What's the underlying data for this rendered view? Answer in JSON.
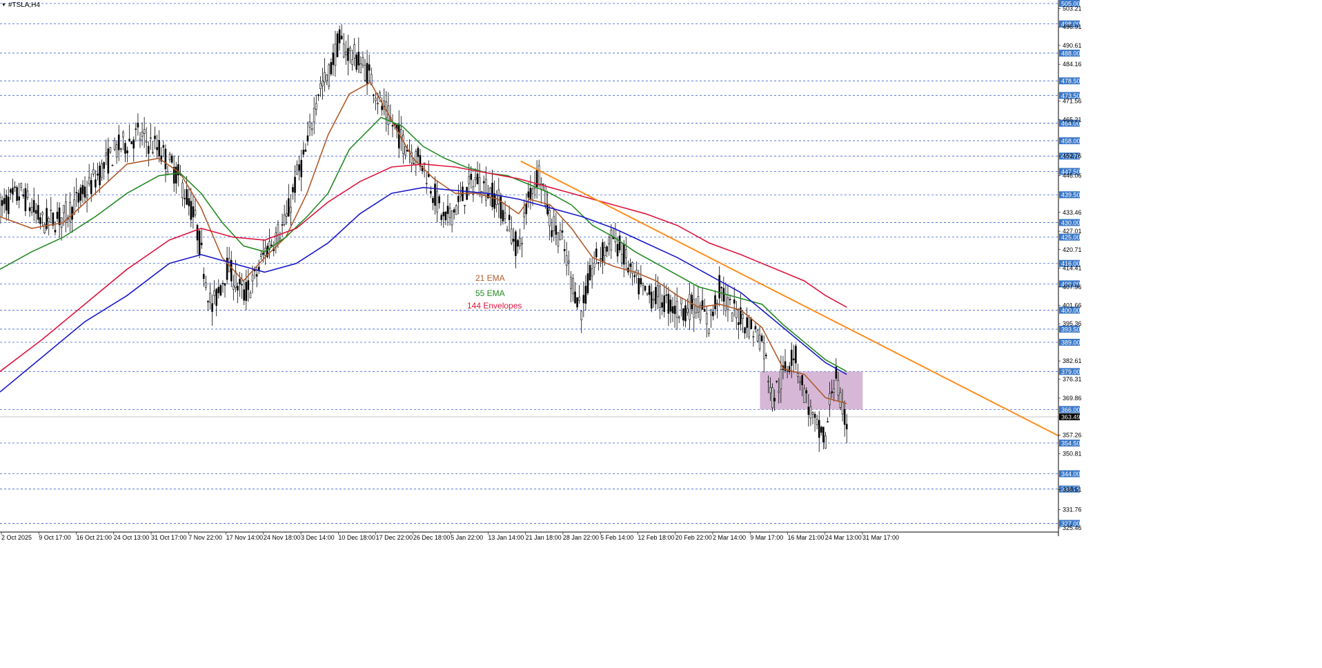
{
  "symbol": "#TSLA,H4",
  "chart_data": {
    "type": "candlestick",
    "title": "#TSLA,H4",
    "price_range": [
      325.45,
      505.0
    ],
    "current_price": "363.49",
    "y_tick_labels": [
      "503.21",
      "496.91",
      "490.61",
      "484.16",
      "471.56",
      "465.21",
      "452.76",
      "446.06",
      "433.46",
      "427.01",
      "420.71",
      "414.41",
      "407.96",
      "401.66",
      "395.36",
      "382.61",
      "376.31",
      "369.86",
      "357.26",
      "350.81",
      "338.51",
      "331.76",
      "325.46"
    ],
    "horizontal_levels": [
      "505.00",
      "498.00",
      "488.00",
      "478.50",
      "473.50",
      "464.00",
      "458.00",
      "452.75",
      "447.50",
      "439.50",
      "430.00",
      "425.00",
      "416.00",
      "409.00",
      "400.00",
      "393.50",
      "389.00",
      "379.00",
      "366.00",
      "354.50",
      "344.00",
      "338.75",
      "327.00"
    ],
    "x_tick_labels": [
      "2 Oct 2025",
      "9 Oct 17:00",
      "16 Oct 21:00",
      "24 Oct 13:00",
      "31 Oct 17:00",
      "7 Nov 22:00",
      "17 Nov 14:00",
      "24 Nov 18:00",
      "3 Dec 14:00",
      "10 Dec 18:00",
      "17 Dec 22:00",
      "26 Dec 18:00",
      "5 Jan 22:00",
      "13 Jan 14:00",
      "21 Jan 18:00",
      "28 Jan 22:00",
      "5 Feb 14:00",
      "12 Feb 18:00",
      "20 Feb 22:00",
      "2 Mar 14:00",
      "9 Mar 17:00",
      "16 Mar 21:00",
      "24 Mar 13:00",
      "31 Mar 17:00"
    ],
    "price_path": [
      [
        0,
        435
      ],
      [
        0.02,
        440
      ],
      [
        0.04,
        430
      ],
      [
        0.06,
        432
      ],
      [
        0.08,
        440
      ],
      [
        0.11,
        455
      ],
      [
        0.13,
        460
      ],
      [
        0.15,
        455
      ],
      [
        0.17,
        445
      ],
      [
        0.185,
        430
      ],
      [
        0.2,
        400
      ],
      [
        0.215,
        415
      ],
      [
        0.23,
        405
      ],
      [
        0.24,
        410
      ],
      [
        0.25,
        420
      ],
      [
        0.27,
        430
      ],
      [
        0.28,
        445
      ],
      [
        0.29,
        455
      ],
      [
        0.3,
        475
      ],
      [
        0.31,
        480
      ],
      [
        0.32,
        492
      ],
      [
        0.33,
        488
      ],
      [
        0.34,
        485
      ],
      [
        0.35,
        480
      ],
      [
        0.36,
        470
      ],
      [
        0.38,
        458
      ],
      [
        0.4,
        450
      ],
      [
        0.41,
        440
      ],
      [
        0.42,
        430
      ],
      [
        0.44,
        440
      ],
      [
        0.45,
        445
      ],
      [
        0.47,
        438
      ],
      [
        0.48,
        430
      ],
      [
        0.49,
        420
      ],
      [
        0.5,
        440
      ],
      [
        0.51,
        448
      ],
      [
        0.52,
        430
      ],
      [
        0.53,
        425
      ],
      [
        0.54,
        410
      ],
      [
        0.55,
        400
      ],
      [
        0.56,
        415
      ],
      [
        0.57,
        420
      ],
      [
        0.58,
        425
      ],
      [
        0.59,
        418
      ],
      [
        0.6,
        410
      ],
      [
        0.61,
        405
      ],
      [
        0.62,
        405
      ],
      [
        0.64,
        400
      ],
      [
        0.66,
        402
      ],
      [
        0.67,
        395
      ],
      [
        0.68,
        408
      ],
      [
        0.69,
        400
      ],
      [
        0.7,
        398
      ],
      [
        0.72,
        390
      ],
      [
        0.73,
        370
      ],
      [
        0.74,
        378
      ],
      [
        0.75,
        386
      ],
      [
        0.76,
        372
      ],
      [
        0.77,
        360
      ],
      [
        0.78,
        355
      ],
      [
        0.785,
        372
      ],
      [
        0.79,
        378
      ],
      [
        0.795,
        365
      ],
      [
        0.8,
        362
      ]
    ],
    "series": [
      {
        "name": "21 EMA",
        "color": "#b05a2a",
        "points": [
          [
            0,
            432
          ],
          [
            0.03,
            428
          ],
          [
            0.06,
            430
          ],
          [
            0.09,
            440
          ],
          [
            0.12,
            450
          ],
          [
            0.15,
            452
          ],
          [
            0.17,
            447
          ],
          [
            0.19,
            435
          ],
          [
            0.21,
            418
          ],
          [
            0.23,
            410
          ],
          [
            0.25,
            418
          ],
          [
            0.27,
            425
          ],
          [
            0.29,
            440
          ],
          [
            0.31,
            460
          ],
          [
            0.33,
            474
          ],
          [
            0.35,
            478
          ],
          [
            0.37,
            465
          ],
          [
            0.39,
            452
          ],
          [
            0.41,
            445
          ],
          [
            0.43,
            440
          ],
          [
            0.45,
            440
          ],
          [
            0.47,
            438
          ],
          [
            0.49,
            433
          ],
          [
            0.5,
            438
          ],
          [
            0.52,
            436
          ],
          [
            0.54,
            428
          ],
          [
            0.56,
            418
          ],
          [
            0.58,
            415
          ],
          [
            0.6,
            413
          ],
          [
            0.62,
            410
          ],
          [
            0.64,
            405
          ],
          [
            0.66,
            401
          ],
          [
            0.68,
            402
          ],
          [
            0.7,
            400
          ],
          [
            0.72,
            394
          ],
          [
            0.74,
            380
          ],
          [
            0.76,
            378
          ],
          [
            0.78,
            370
          ],
          [
            0.8,
            368
          ]
        ]
      },
      {
        "name": "55 EMA",
        "color": "#218a21",
        "points": [
          [
            0,
            414
          ],
          [
            0.03,
            420
          ],
          [
            0.06,
            425
          ],
          [
            0.09,
            432
          ],
          [
            0.12,
            440
          ],
          [
            0.15,
            446
          ],
          [
            0.17,
            447
          ],
          [
            0.19,
            440
          ],
          [
            0.21,
            430
          ],
          [
            0.23,
            422
          ],
          [
            0.25,
            420
          ],
          [
            0.27,
            425
          ],
          [
            0.29,
            432
          ],
          [
            0.31,
            440
          ],
          [
            0.33,
            455
          ],
          [
            0.36,
            466
          ],
          [
            0.38,
            463
          ],
          [
            0.4,
            456
          ],
          [
            0.42,
            452
          ],
          [
            0.44,
            449
          ],
          [
            0.46,
            447
          ],
          [
            0.48,
            446
          ],
          [
            0.5,
            443
          ],
          [
            0.52,
            440
          ],
          [
            0.54,
            436
          ],
          [
            0.56,
            429
          ],
          [
            0.58,
            425
          ],
          [
            0.6,
            420
          ],
          [
            0.62,
            416
          ],
          [
            0.64,
            412
          ],
          [
            0.66,
            408
          ],
          [
            0.68,
            406
          ],
          [
            0.7,
            404
          ],
          [
            0.72,
            402
          ],
          [
            0.74,
            395
          ],
          [
            0.76,
            389
          ],
          [
            0.78,
            383
          ],
          [
            0.8,
            379
          ]
        ]
      },
      {
        "name": "144 Envelopes",
        "color": "#dc143c",
        "points": [
          [
            0,
            379
          ],
          [
            0.04,
            390
          ],
          [
            0.08,
            402
          ],
          [
            0.12,
            414
          ],
          [
            0.16,
            424
          ],
          [
            0.19,
            428
          ],
          [
            0.22,
            425
          ],
          [
            0.25,
            424
          ],
          [
            0.28,
            428
          ],
          [
            0.31,
            437
          ],
          [
            0.34,
            444
          ],
          [
            0.37,
            449
          ],
          [
            0.4,
            450
          ],
          [
            0.43,
            449
          ],
          [
            0.46,
            447
          ],
          [
            0.49,
            445
          ],
          [
            0.52,
            442
          ],
          [
            0.55,
            439
          ],
          [
            0.58,
            436
          ],
          [
            0.61,
            433
          ],
          [
            0.64,
            429
          ],
          [
            0.67,
            423
          ],
          [
            0.7,
            419
          ],
          [
            0.72,
            416
          ],
          [
            0.74,
            413
          ],
          [
            0.76,
            410
          ],
          [
            0.78,
            405
          ],
          [
            0.8,
            401
          ]
        ]
      },
      {
        "name": "",
        "color": "#1818c8",
        "points": [
          [
            0,
            372
          ],
          [
            0.04,
            384
          ],
          [
            0.08,
            396
          ],
          [
            0.12,
            405
          ],
          [
            0.16,
            416
          ],
          [
            0.19,
            419
          ],
          [
            0.22,
            416
          ],
          [
            0.25,
            413
          ],
          [
            0.28,
            416
          ],
          [
            0.31,
            423
          ],
          [
            0.34,
            433
          ],
          [
            0.37,
            440
          ],
          [
            0.4,
            442
          ],
          [
            0.43,
            441
          ],
          [
            0.46,
            440
          ],
          [
            0.49,
            438
          ],
          [
            0.52,
            435
          ],
          [
            0.55,
            432
          ],
          [
            0.58,
            428
          ],
          [
            0.61,
            423
          ],
          [
            0.64,
            418
          ],
          [
            0.67,
            412
          ],
          [
            0.7,
            406
          ],
          [
            0.72,
            400
          ],
          [
            0.74,
            394
          ],
          [
            0.76,
            388
          ],
          [
            0.78,
            382
          ],
          [
            0.8,
            378
          ]
        ]
      }
    ],
    "trendline": {
      "color": "#ff8c1a",
      "start": [
        0.492,
        451
      ],
      "end": [
        1.0,
        357
      ]
    },
    "zone": {
      "color": "#c8a0c8",
      "x_range": [
        0.718,
        0.815
      ],
      "price_range": [
        366,
        379
      ]
    },
    "legend": [
      {
        "label": "21 EMA",
        "color": "#b05a2a"
      },
      {
        "label": "55 EMA",
        "color": "#218a21"
      },
      {
        "label": "144 Envelopes",
        "color": "#dc143c"
      }
    ]
  }
}
